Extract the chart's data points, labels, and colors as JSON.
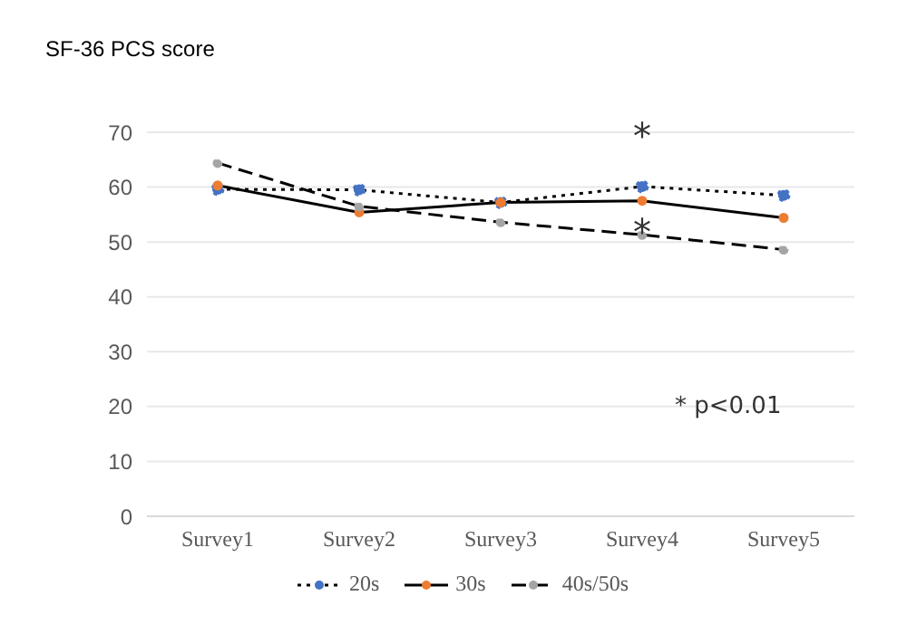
{
  "chart_data": {
    "type": "line",
    "title": "SF-36 PCS score",
    "categories": [
      "Survey1",
      "Survey2",
      "Survey3",
      "Survey4",
      "Survey5"
    ],
    "series": [
      {
        "name": "20s",
        "color": "#4472c4",
        "line_style": "dotted",
        "values": [
          59.6,
          59.5,
          57.2,
          60.1,
          58.5
        ]
      },
      {
        "name": "30s",
        "color": "#ed7d31",
        "line_style": "solid",
        "values": [
          60.3,
          55.4,
          57.2,
          57.5,
          54.4
        ]
      },
      {
        "name": "40s/50s",
        "color": "#a5a5a5",
        "line_style": "dashed",
        "values": [
          64.4,
          56.5,
          53.6,
          51.3,
          48.6
        ]
      }
    ],
    "ylim": [
      0,
      70
    ],
    "yticks": [
      0,
      10,
      20,
      30,
      40,
      50,
      60,
      70
    ],
    "grid": "y",
    "legend": "bottom",
    "marker": "circle",
    "annotations": [
      "*",
      "*",
      "* p<0.01"
    ]
  }
}
